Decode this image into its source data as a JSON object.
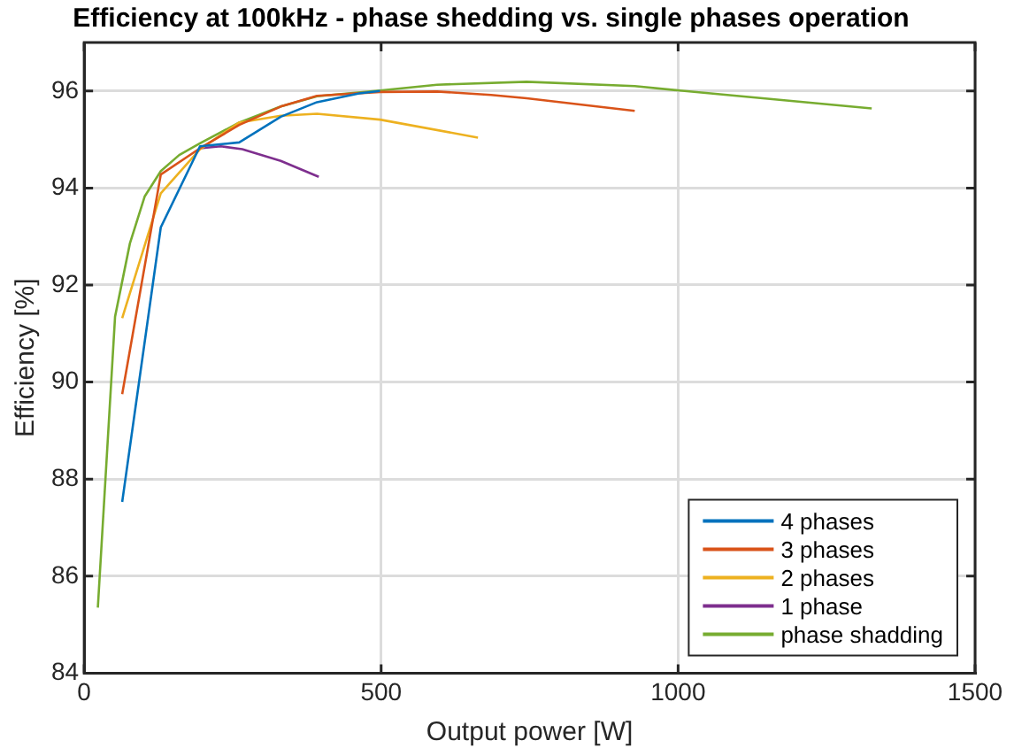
{
  "chart_data": {
    "type": "line",
    "title": "Efficiency at 100kHz - phase shedding vs. single phases operation",
    "xlabel": "Output power [W]",
    "ylabel": "Efficiency [%]",
    "xlim": [
      0,
      1500
    ],
    "xticks": [
      0,
      500,
      1000,
      1500
    ],
    "ylim": [
      84,
      97
    ],
    "yticks": [
      84,
      86,
      88,
      90,
      92,
      94,
      96
    ],
    "grid": true,
    "legend": "bottom right",
    "marker": "none",
    "line_style": "solid",
    "series": [
      {
        "name": "4 phases",
        "color": "#0072bd",
        "x": [
          64,
          129,
          195,
          261,
          331,
          392,
          463,
          498
        ],
        "values": [
          87.53,
          93.19,
          94.86,
          94.94,
          95.47,
          95.77,
          95.95,
          96.0
        ]
      },
      {
        "name": "3 phases",
        "color": "#d95319",
        "x": [
          64,
          129,
          195,
          261,
          331,
          392,
          498,
          594,
          685,
          745,
          927
        ],
        "values": [
          89.75,
          94.28,
          94.82,
          95.3,
          95.68,
          95.9,
          95.98,
          95.99,
          95.92,
          95.85,
          95.59
        ]
      },
      {
        "name": "2 phases",
        "color": "#edb120",
        "x": [
          64,
          129,
          195,
          261,
          331,
          392,
          498,
          663
        ],
        "values": [
          91.32,
          93.89,
          94.8,
          95.35,
          95.49,
          95.53,
          95.41,
          95.04
        ]
      },
      {
        "name": "1 phase",
        "color": "#7e2f8e",
        "x": [
          195,
          230,
          266,
          331,
          395
        ],
        "values": [
          94.82,
          94.86,
          94.8,
          94.56,
          94.23
        ]
      },
      {
        "name": "phase shadding",
        "color": "#77ac30",
        "x": [
          23,
          52,
          77,
          102,
          129,
          160,
          195,
          261,
          331,
          392,
          498,
          594,
          745,
          927,
          1003,
          1326
        ],
        "values": [
          85.35,
          91.35,
          92.86,
          93.83,
          94.35,
          94.68,
          94.92,
          95.35,
          95.68,
          95.89,
          96.01,
          96.13,
          96.19,
          96.1,
          96.01,
          95.64
        ]
      }
    ]
  }
}
